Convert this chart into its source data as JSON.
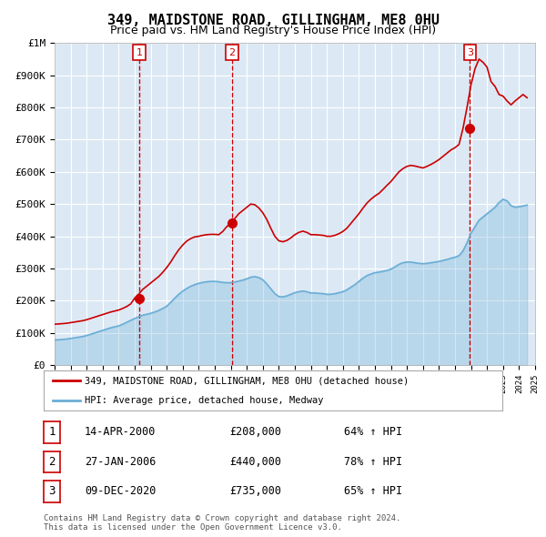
{
  "title": "349, MAIDSTONE ROAD, GILLINGHAM, ME8 0HU",
  "subtitle": "Price paid vs. HM Land Registry's House Price Index (HPI)",
  "title_fontsize": 12,
  "subtitle_fontsize": 10,
  "background_color": "#ffffff",
  "plot_bg_color": "#dce9f5",
  "grid_color": "#ffffff",
  "ylim": [
    0,
    1000000
  ],
  "yticks": [
    0,
    100000,
    200000,
    300000,
    400000,
    500000,
    600000,
    700000,
    800000,
    900000,
    1000000
  ],
  "ytick_labels": [
    "£0",
    "£100K",
    "£200K",
    "£300K",
    "£400K",
    "£500K",
    "£600K",
    "£700K",
    "£800K",
    "£900K",
    "£1M"
  ],
  "x_start_year": 1995,
  "x_end_year": 2025,
  "sale_dates": [
    "2000-04-14",
    "2006-01-27",
    "2020-12-09"
  ],
  "sale_prices": [
    208000,
    440000,
    735000
  ],
  "sale_labels": [
    "1",
    "2",
    "3"
  ],
  "vline_color": "#cc0000",
  "sale_dot_color": "#cc0000",
  "hpi_line_color": "#6baed6",
  "hpi_fill_color": "#dce9f5",
  "price_line_color": "#cc0000",
  "legend_label_red": "349, MAIDSTONE ROAD, GILLINGHAM, ME8 0HU (detached house)",
  "legend_label_blue": "HPI: Average price, detached house, Medway",
  "table_rows": [
    {
      "num": "1",
      "date": "14-APR-2000",
      "price": "£208,000",
      "pct": "64% ↑ HPI"
    },
    {
      "num": "2",
      "date": "27-JAN-2006",
      "price": "£440,000",
      "pct": "78% ↑ HPI"
    },
    {
      "num": "3",
      "date": "09-DEC-2020",
      "price": "£735,000",
      "pct": "65% ↑ HPI"
    }
  ],
  "footer": "Contains HM Land Registry data © Crown copyright and database right 2024.\nThis data is licensed under the Open Government Licence v3.0.",
  "hpi_data_x": [
    1995.0,
    1995.25,
    1995.5,
    1995.75,
    1996.0,
    1996.25,
    1996.5,
    1996.75,
    1997.0,
    1997.25,
    1997.5,
    1997.75,
    1998.0,
    1998.25,
    1998.5,
    1998.75,
    1999.0,
    1999.25,
    1999.5,
    1999.75,
    2000.0,
    2000.25,
    2000.5,
    2000.75,
    2001.0,
    2001.25,
    2001.5,
    2001.75,
    2002.0,
    2002.25,
    2002.5,
    2002.75,
    2003.0,
    2003.25,
    2003.5,
    2003.75,
    2004.0,
    2004.25,
    2004.5,
    2004.75,
    2005.0,
    2005.25,
    2005.5,
    2005.75,
    2006.0,
    2006.25,
    2006.5,
    2006.75,
    2007.0,
    2007.25,
    2007.5,
    2007.75,
    2008.0,
    2008.25,
    2008.5,
    2008.75,
    2009.0,
    2009.25,
    2009.5,
    2009.75,
    2010.0,
    2010.25,
    2010.5,
    2010.75,
    2011.0,
    2011.25,
    2011.5,
    2011.75,
    2012.0,
    2012.25,
    2012.5,
    2012.75,
    2013.0,
    2013.25,
    2013.5,
    2013.75,
    2014.0,
    2014.25,
    2014.5,
    2014.75,
    2015.0,
    2015.25,
    2015.5,
    2015.75,
    2016.0,
    2016.25,
    2016.5,
    2016.75,
    2017.0,
    2017.25,
    2017.5,
    2017.75,
    2018.0,
    2018.25,
    2018.5,
    2018.75,
    2019.0,
    2019.25,
    2019.5,
    2019.75,
    2020.0,
    2020.25,
    2020.5,
    2020.75,
    2021.0,
    2021.25,
    2021.5,
    2021.75,
    2022.0,
    2022.25,
    2022.5,
    2022.75,
    2023.0,
    2023.25,
    2023.5,
    2023.75,
    2024.0,
    2024.25,
    2024.5
  ],
  "hpi_data_y": [
    78000,
    79000,
    80000,
    81000,
    83000,
    85000,
    87000,
    89000,
    92000,
    96000,
    100000,
    104000,
    108000,
    112000,
    116000,
    119000,
    122000,
    127000,
    133000,
    139000,
    145000,
    150000,
    155000,
    158000,
    161000,
    165000,
    170000,
    176000,
    183000,
    195000,
    208000,
    220000,
    230000,
    238000,
    245000,
    250000,
    254000,
    257000,
    259000,
    260000,
    260000,
    259000,
    257000,
    256000,
    256000,
    258000,
    261000,
    264000,
    268000,
    273000,
    275000,
    272000,
    265000,
    252000,
    237000,
    222000,
    213000,
    212000,
    215000,
    220000,
    225000,
    228000,
    230000,
    228000,
    224000,
    224000,
    223000,
    222000,
    220000,
    220000,
    222000,
    225000,
    228000,
    234000,
    242000,
    250000,
    260000,
    270000,
    278000,
    283000,
    287000,
    289000,
    291000,
    294000,
    298000,
    305000,
    313000,
    318000,
    320000,
    320000,
    318000,
    316000,
    315000,
    316000,
    318000,
    320000,
    322000,
    325000,
    328000,
    332000,
    335000,
    340000,
    355000,
    380000,
    410000,
    430000,
    450000,
    460000,
    470000,
    480000,
    490000,
    505000,
    515000,
    510000,
    495000,
    490000,
    492000,
    494000,
    497000
  ],
  "price_data_x": [
    1995.0,
    1995.25,
    1995.5,
    1995.75,
    1996.0,
    1996.25,
    1996.5,
    1996.75,
    1997.0,
    1997.25,
    1997.5,
    1997.75,
    1998.0,
    1998.25,
    1998.5,
    1998.75,
    1999.0,
    1999.25,
    1999.5,
    1999.75,
    2000.0,
    2000.25,
    2000.5,
    2000.75,
    2001.0,
    2001.25,
    2001.5,
    2001.75,
    2002.0,
    2002.25,
    2002.5,
    2002.75,
    2003.0,
    2003.25,
    2003.5,
    2003.75,
    2004.0,
    2004.25,
    2004.5,
    2004.75,
    2005.0,
    2005.25,
    2005.5,
    2005.75,
    2006.0,
    2006.25,
    2006.5,
    2006.75,
    2007.0,
    2007.25,
    2007.5,
    2007.75,
    2008.0,
    2008.25,
    2008.5,
    2008.75,
    2009.0,
    2009.25,
    2009.5,
    2009.75,
    2010.0,
    2010.25,
    2010.5,
    2010.75,
    2011.0,
    2011.25,
    2011.5,
    2011.75,
    2012.0,
    2012.25,
    2012.5,
    2012.75,
    2013.0,
    2013.25,
    2013.5,
    2013.75,
    2014.0,
    2014.25,
    2014.5,
    2014.75,
    2015.0,
    2015.25,
    2015.5,
    2015.75,
    2016.0,
    2016.25,
    2016.5,
    2016.75,
    2017.0,
    2017.25,
    2017.5,
    2017.75,
    2018.0,
    2018.25,
    2018.5,
    2018.75,
    2019.0,
    2019.25,
    2019.5,
    2019.75,
    2020.0,
    2020.25,
    2020.5,
    2020.75,
    2021.0,
    2021.25,
    2021.5,
    2021.75,
    2022.0,
    2022.25,
    2022.5,
    2022.75,
    2023.0,
    2023.25,
    2023.5,
    2023.75,
    2024.0,
    2024.25,
    2024.5
  ],
  "price_data_y": [
    127000,
    128000,
    129000,
    130000,
    132000,
    134000,
    136000,
    138000,
    141000,
    145000,
    149000,
    153000,
    157000,
    161000,
    165000,
    168000,
    171000,
    176000,
    182000,
    190000,
    208000,
    220000,
    235000,
    245000,
    255000,
    265000,
    275000,
    288000,
    303000,
    320000,
    340000,
    358000,
    373000,
    385000,
    393000,
    398000,
    400000,
    403000,
    405000,
    406000,
    406000,
    405000,
    415000,
    430000,
    440000,
    455000,
    470000,
    480000,
    490000,
    500000,
    498000,
    488000,
    473000,
    452000,
    425000,
    400000,
    386000,
    383000,
    387000,
    395000,
    405000,
    412000,
    416000,
    412000,
    405000,
    405000,
    404000,
    403000,
    400000,
    400000,
    403000,
    408000,
    415000,
    425000,
    440000,
    455000,
    470000,
    487000,
    503000,
    515000,
    525000,
    533000,
    545000,
    558000,
    570000,
    585000,
    600000,
    610000,
    617000,
    620000,
    618000,
    615000,
    612000,
    617000,
    623000,
    630000,
    638000,
    648000,
    658000,
    668000,
    675000,
    685000,
    735000,
    800000,
    870000,
    920000,
    950000,
    940000,
    925000,
    880000,
    865000,
    840000,
    835000,
    820000,
    808000,
    820000,
    830000,
    840000,
    830000
  ]
}
